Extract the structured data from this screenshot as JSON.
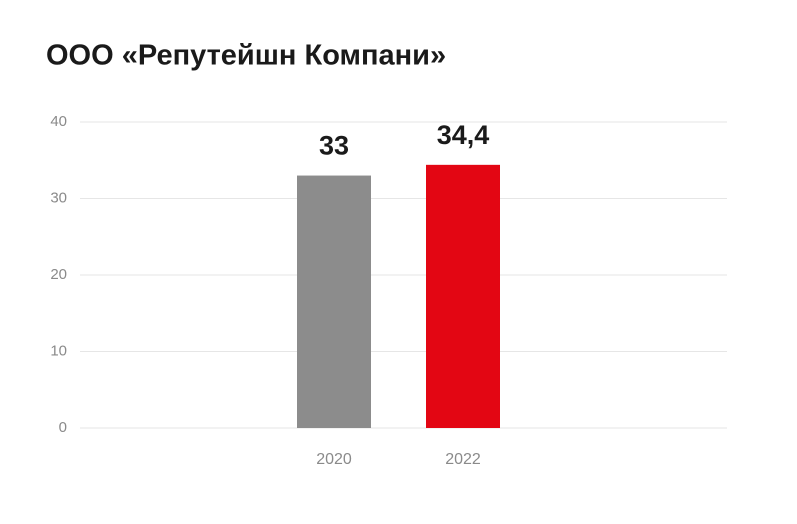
{
  "chart_data": {
    "type": "bar",
    "title": "ООО «Репутейшн Компани»",
    "categories": [
      "2020",
      "2022"
    ],
    "values": [
      33,
      34.4
    ],
    "value_labels": [
      "33",
      "34,4"
    ],
    "colors": [
      "#8c8c8c",
      "#e30613"
    ],
    "ylim": [
      0,
      40
    ],
    "yticks": [
      0,
      10,
      20,
      30,
      40
    ],
    "grid": true
  }
}
